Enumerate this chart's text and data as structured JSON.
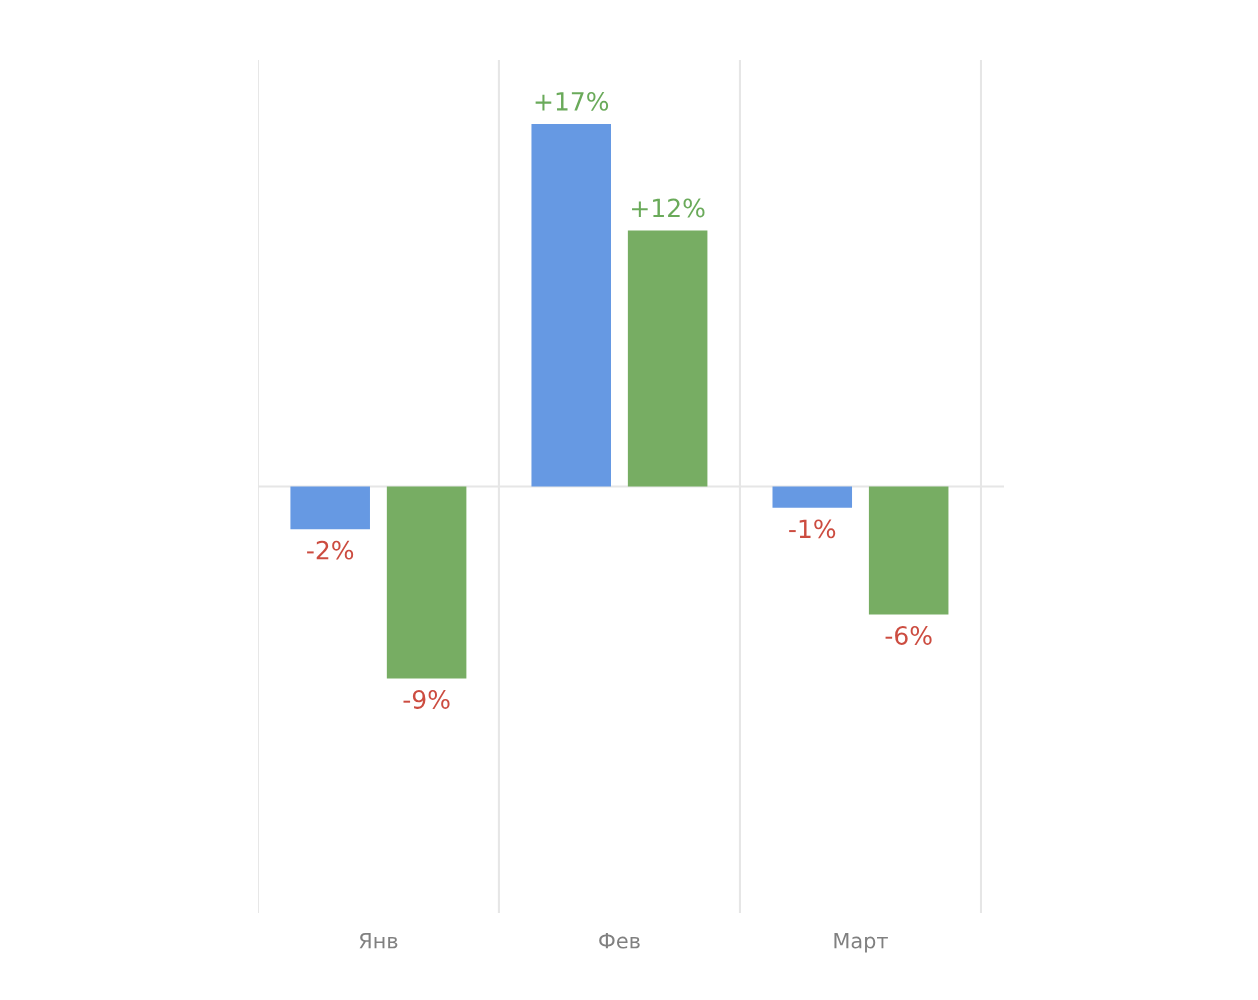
{
  "chart_data": {
    "type": "bar",
    "categories": [
      "Янв",
      "Фев",
      "Март"
    ],
    "series": [
      {
        "color": "#6699e3",
        "values": [
          -2,
          17,
          -1
        ],
        "value_labels": [
          "-2%",
          "+17%",
          "-1%"
        ]
      },
      {
        "color": "#77ad63",
        "values": [
          -9,
          12,
          -6
        ],
        "value_labels": [
          "-9%",
          "+12%",
          "-6%"
        ]
      }
    ],
    "ylim": [
      -20,
      20
    ],
    "grid": "x",
    "legend": false
  }
}
